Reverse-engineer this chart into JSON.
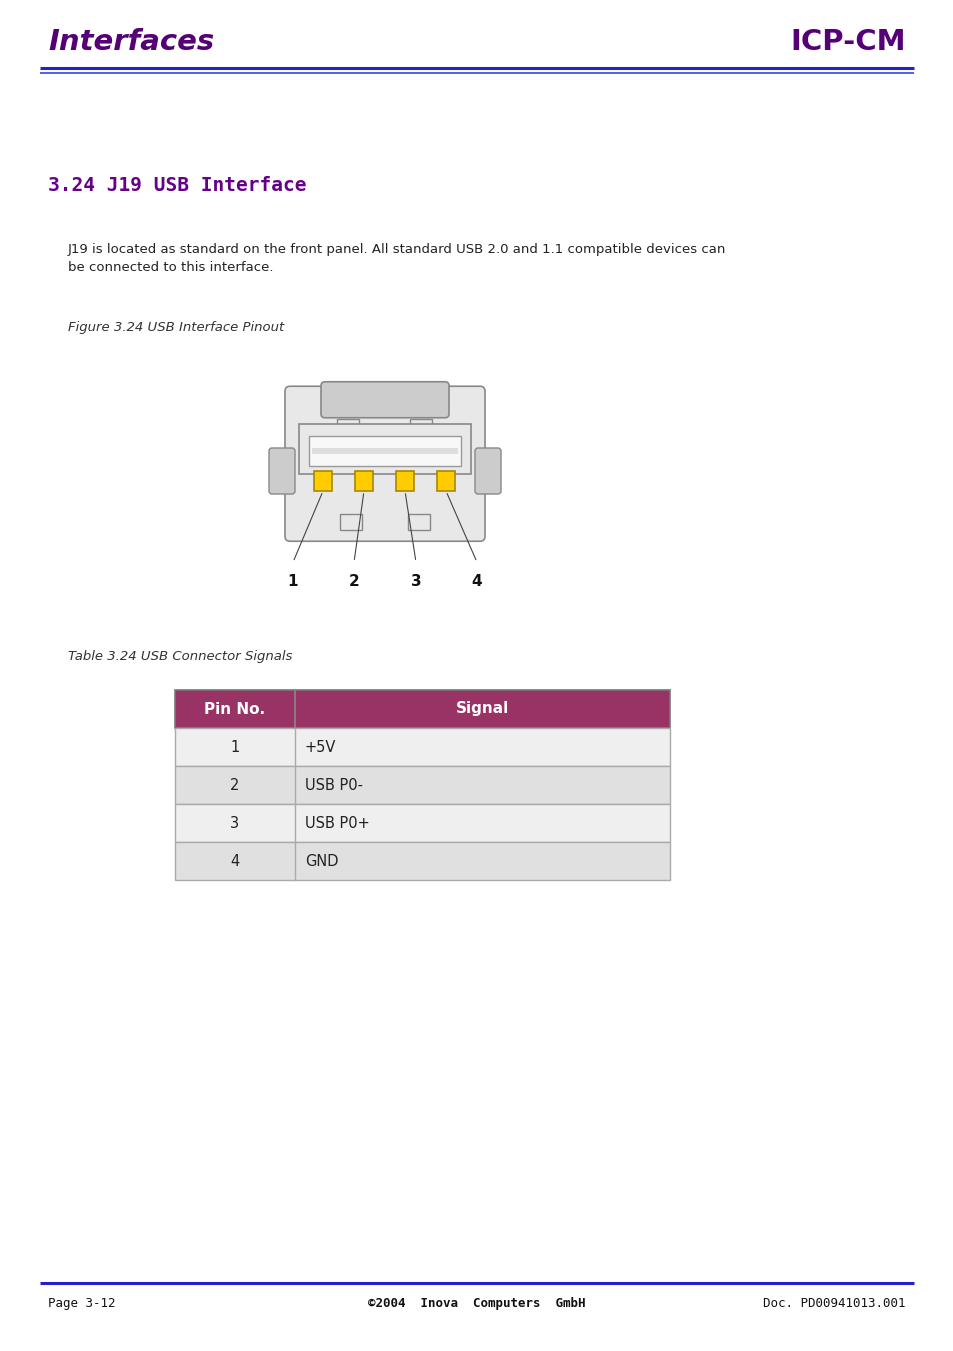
{
  "page_bg": "#ffffff",
  "header_left": "Interfaces",
  "header_right": "ICP-CM",
  "header_color": "#550077",
  "header_line_color1": "#2222cc",
  "header_line_color2": "#4455dd",
  "section_title": "3.24 J19 USB Interface",
  "section_title_color": "#660088",
  "body_text1": "J19 is located as standard on the front panel. All standard USB 2.0 and 1.1 compatible devices can",
  "body_text2": "be connected to this interface.",
  "figure_caption": "Figure 3.24 USB Interface Pinout",
  "table_caption": "Table 3.24 USB Connector Signals",
  "table_header_bg": "#993366",
  "table_header_text": "#ffffff",
  "table_row_bg1": "#efefef",
  "table_row_bg2": "#e0e0e0",
  "table_col1_header": "Pin No.",
  "table_col2_header": "Signal",
  "table_data": [
    [
      "1",
      "+5V"
    ],
    [
      "2",
      "USB P0-"
    ],
    [
      "3",
      "USB P0+"
    ],
    [
      "4",
      "GND"
    ]
  ],
  "footer_left": "Page 3-12",
  "footer_center": "©2004  Inova  Computers  GmbH",
  "footer_right": "Doc. PD00941013.001",
  "footer_line_color": "#2222cc",
  "pin_numbers": [
    "1",
    "2",
    "3",
    "4"
  ],
  "connector_light": "#e8e8e8",
  "connector_mid": "#cccccc",
  "connector_dark": "#999999",
  "connector_edge": "#888888",
  "pin_color": "#ffcc00",
  "pin_edge": "#aa8800"
}
